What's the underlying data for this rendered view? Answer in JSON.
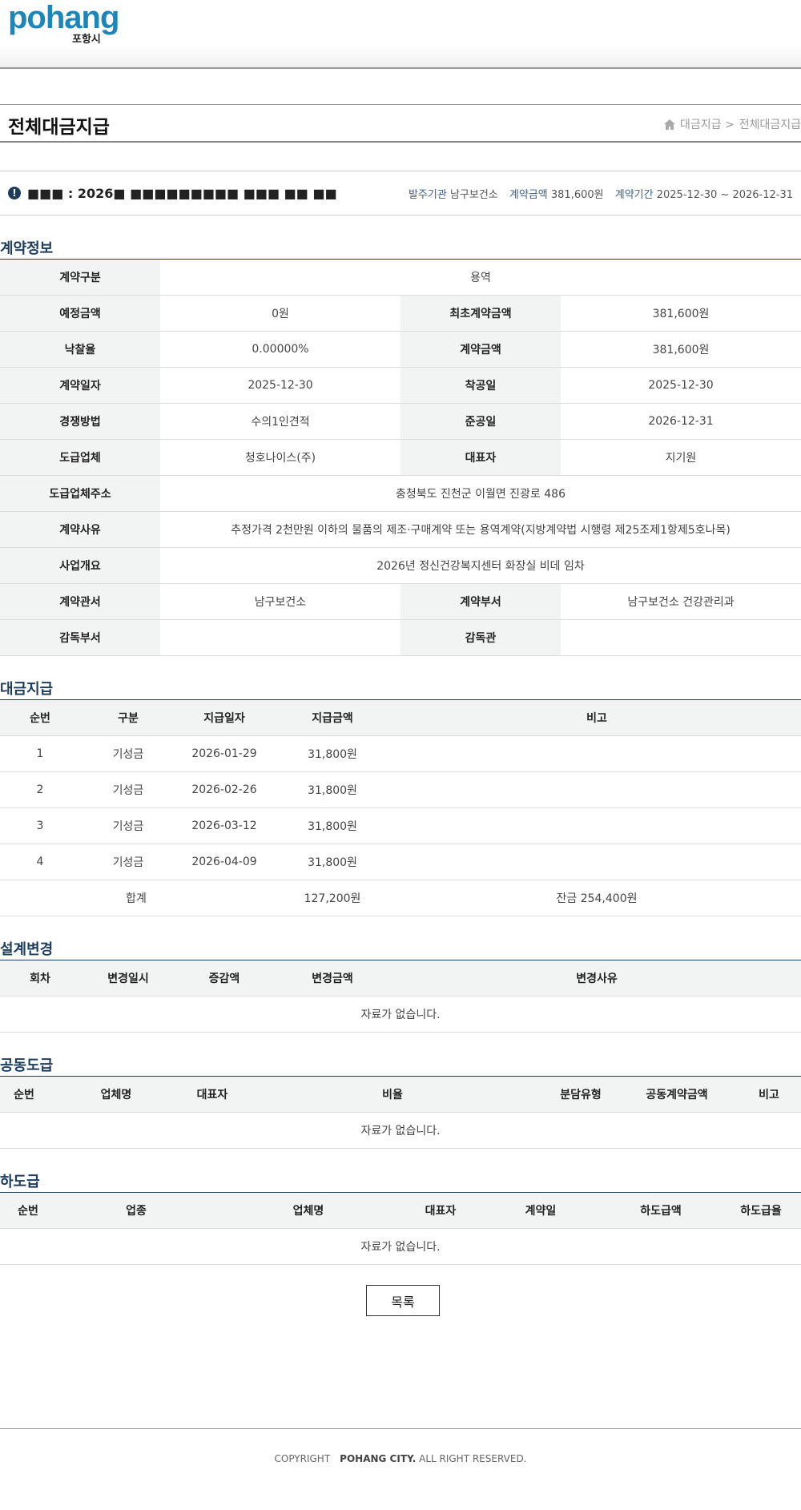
{
  "header": {
    "logo_text": "pohang",
    "logo_sub": "포항시"
  },
  "page": {
    "title": "전체대금지급",
    "breadcrumb": [
      "대금지급 >",
      "전체대금지급"
    ]
  },
  "notice": {
    "title": "■■■ : 2026■ ■■■■■■■■■ ■■■ ■■ ■■",
    "org_label": "발주기관",
    "org": "남구보건소",
    "amount_label": "계약금액",
    "amount": "381,600원",
    "period_label": "계약기간",
    "period": "2025-12-30 ~ 2026-12-31"
  },
  "contract": {
    "heading": "계약정보",
    "rows": [
      [
        {
          "h": "계약구분"
        },
        {
          "v": "용역",
          "span": 3
        }
      ],
      [
        {
          "h": "예정금액"
        },
        {
          "v": "0원"
        },
        {
          "h": "최초계약금액"
        },
        {
          "v": "381,600원"
        }
      ],
      [
        {
          "h": "낙찰율"
        },
        {
          "v": "0.00000%"
        },
        {
          "h": "계약금액"
        },
        {
          "v": "381,600원"
        }
      ],
      [
        {
          "h": "계약일자"
        },
        {
          "v": "2025-12-30"
        },
        {
          "h": "착공일"
        },
        {
          "v": "2025-12-30"
        }
      ],
      [
        {
          "h": "경쟁방법"
        },
        {
          "v": "수의1인견적"
        },
        {
          "h": "준공일"
        },
        {
          "v": "2026-12-31"
        }
      ],
      [
        {
          "h": "도급업체"
        },
        {
          "v": "청호나이스(주)"
        },
        {
          "h": "대표자"
        },
        {
          "v": "지기원"
        }
      ],
      [
        {
          "h": "도급업체주소"
        },
        {
          "v": "충청북도 진천군 이월면 진광로 486",
          "span": 3
        }
      ],
      [
        {
          "h": "계약사유"
        },
        {
          "v": "추정가격 2천만원 이하의 물품의 제조·구매계약 또는 용역계약(지방계약법 시행령 제25조제1항제5호나목)",
          "span": 3
        }
      ],
      [
        {
          "h": "사업개요"
        },
        {
          "v": "2026년 정신건강복지센터 화장실 비데 임차",
          "span": 3
        }
      ],
      [
        {
          "h": "계약관서"
        },
        {
          "v": "남구보건소"
        },
        {
          "h": "계약부서"
        },
        {
          "v": "남구보건소 건강관리과"
        }
      ],
      [
        {
          "h": "감독부서"
        },
        {
          "v": ""
        },
        {
          "h": "감독관"
        },
        {
          "v": ""
        }
      ]
    ]
  },
  "payments": {
    "heading": "대금지급",
    "columns": [
      "순번",
      "구분",
      "지급일자",
      "지급금액",
      "비고"
    ],
    "rows": [
      [
        "1",
        "기성금",
        "2026-01-29",
        "31,800원",
        ""
      ],
      [
        "2",
        "기성금",
        "2026-02-26",
        "31,800원",
        ""
      ],
      [
        "3",
        "기성금",
        "2026-03-12",
        "31,800원",
        ""
      ],
      [
        "4",
        "기성금",
        "2026-04-09",
        "31,800원",
        ""
      ]
    ],
    "total_label": "합계",
    "total": "127,200원",
    "balance": "잔금 254,400원"
  },
  "design_change": {
    "heading": "설계변경",
    "columns": [
      "회차",
      "변경일시",
      "증감액",
      "변경금액",
      "변경사유"
    ],
    "empty": "자료가 없습니다."
  },
  "joint": {
    "heading": "공동도급",
    "columns": [
      "순번",
      "업체명",
      "대표자",
      "비율",
      "분담유형",
      "공동계약금액",
      "비고"
    ],
    "empty": "자료가 없습니다."
  },
  "sub": {
    "heading": "하도급",
    "columns": [
      "순번",
      "업종",
      "업체명",
      "대표자",
      "계약일",
      "하도급액",
      "하도급율"
    ],
    "empty": "자료가 없습니다."
  },
  "list_button": "목록",
  "footer": {
    "copyright": "COPYRIGHT",
    "owner": "POHANG CITY.",
    "rights": "ALL RIGHT RESERVED."
  }
}
